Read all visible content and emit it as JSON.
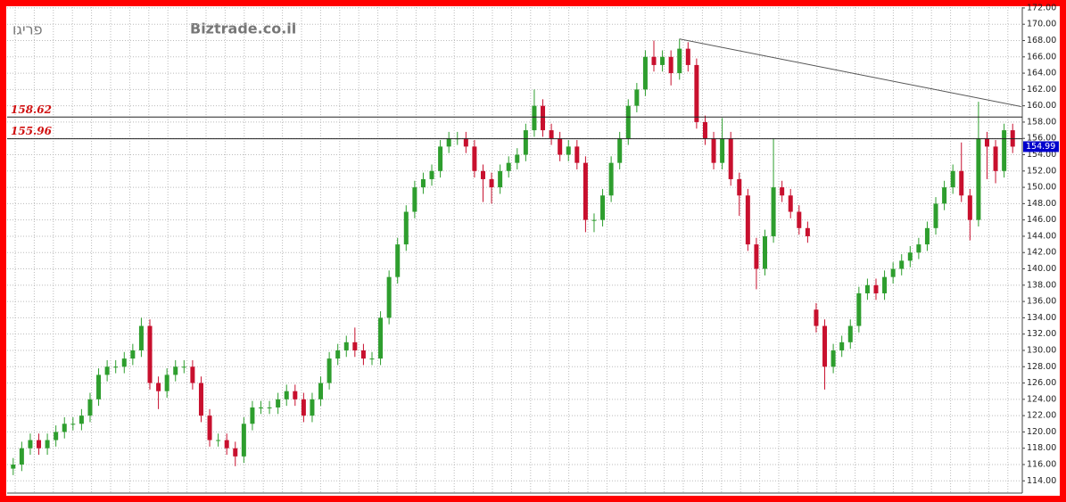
{
  "chart_data": {
    "type": "candlestick",
    "title": "פריגו",
    "watermark": "Biztrade.co.il",
    "up_color": "#2e9e2e",
    "down_color": "#c8102e",
    "ylim": [
      112.5,
      172.1
    ],
    "yticks": [
      {
        "value": 114,
        "label": "114.00"
      },
      {
        "value": 116,
        "label": "116.00"
      },
      {
        "value": 118,
        "label": "118.00"
      },
      {
        "value": 120,
        "label": "120.00"
      },
      {
        "value": 122,
        "label": "122.00"
      },
      {
        "value": 124,
        "label": "124.00"
      },
      {
        "value": 126,
        "label": "126.00"
      },
      {
        "value": 128,
        "label": "128.00"
      },
      {
        "value": 130,
        "label": "130.00"
      },
      {
        "value": 132,
        "label": "132.00"
      },
      {
        "value": 134,
        "label": "134.00"
      },
      {
        "value": 136,
        "label": "136.00"
      },
      {
        "value": 138,
        "label": "138.00"
      },
      {
        "value": 140,
        "label": "140.00"
      },
      {
        "value": 142,
        "label": "142.00"
      },
      {
        "value": 144,
        "label": "144.00"
      },
      {
        "value": 146,
        "label": "146.00"
      },
      {
        "value": 148,
        "label": "148.00"
      },
      {
        "value": 150,
        "label": "150.00"
      },
      {
        "value": 152,
        "label": "152.00"
      },
      {
        "value": 154,
        "label": "154.00"
      },
      {
        "value": 156,
        "label": "156.00"
      },
      {
        "value": 158,
        "label": "158.00"
      },
      {
        "value": 160,
        "label": "160.00"
      },
      {
        "value": 162,
        "label": "162.00"
      },
      {
        "value": 164,
        "label": "164.00"
      },
      {
        "value": 166,
        "label": "166.00"
      },
      {
        "value": 168,
        "label": "168.00"
      },
      {
        "value": 170,
        "label": "170.00"
      },
      {
        "value": 172,
        "label": "172.00"
      }
    ],
    "grid": true,
    "open": [
      115.5,
      116,
      118,
      119,
      118,
      119,
      120,
      121,
      121,
      122,
      124,
      127,
      128,
      128,
      129,
      130,
      133,
      126,
      125,
      127,
      128,
      128,
      126,
      122,
      119,
      119,
      118,
      117,
      121,
      123,
      123,
      123,
      124,
      125,
      124,
      122,
      124,
      126,
      129,
      130,
      131,
      130,
      129,
      129,
      134,
      139,
      143,
      147,
      150,
      151,
      152,
      155,
      156,
      156,
      155,
      152,
      151,
      150,
      152,
      153,
      154,
      157,
      160,
      157,
      156,
      154,
      155,
      153,
      146,
      146,
      149,
      153,
      156,
      160,
      162,
      166,
      165,
      166,
      164,
      167,
      165,
      158,
      156,
      153,
      156,
      151,
      149,
      143,
      140,
      144,
      150,
      149,
      147,
      145,
      135,
      133,
      128,
      130,
      131,
      133,
      137,
      138,
      137,
      139,
      140,
      141,
      142,
      143,
      145,
      148,
      150,
      152,
      149,
      146,
      156,
      155,
      152,
      157
    ],
    "high": [
      116.8,
      118.8,
      119.8,
      119.8,
      119.8,
      120.8,
      121.8,
      121.8,
      122.8,
      124.8,
      127.8,
      128.8,
      128.8,
      129.8,
      130.8,
      134,
      133.8,
      126.8,
      127.8,
      128.8,
      128.8,
      128.8,
      126.8,
      122.8,
      119.8,
      119.8,
      118.8,
      121.8,
      123.8,
      123.8,
      123.8,
      124.8,
      125.8,
      125.8,
      124.8,
      124.8,
      126.8,
      129.8,
      130.8,
      131.8,
      132.8,
      130.8,
      129.8,
      134.8,
      139.8,
      143.8,
      147.8,
      150.8,
      151.8,
      152.8,
      155.8,
      156.8,
      156.8,
      156.8,
      155.8,
      152.8,
      151.8,
      152.8,
      153.8,
      154.8,
      157.8,
      162,
      160.8,
      157.8,
      156.8,
      155.8,
      155.8,
      153.8,
      146.8,
      149.8,
      153.8,
      156.8,
      160.8,
      162.8,
      166.8,
      168,
      166.8,
      166.8,
      168.2,
      167.8,
      165.8,
      158.8,
      156.8,
      158.5,
      156.8,
      151.8,
      149.8,
      143.8,
      144.8,
      156,
      150.8,
      149.8,
      147.8,
      145.8,
      135.8,
      133.8,
      130.8,
      131.8,
      133.8,
      137.8,
      138.8,
      138.8,
      139.8,
      140.8,
      141.8,
      142.8,
      143.8,
      145.8,
      148.8,
      150.8,
      152.8,
      155.5,
      149.8,
      160.5,
      156.8,
      155.8,
      157.8,
      157.8
    ],
    "low": [
      114.7,
      115.2,
      117.2,
      117.2,
      117.2,
      118.2,
      119.2,
      120.2,
      120.2,
      121.2,
      123.2,
      126.2,
      127.2,
      127.2,
      128.2,
      129.2,
      125.2,
      122.8,
      124.2,
      126.2,
      127.2,
      125.2,
      121.2,
      118.2,
      118.2,
      117.2,
      115.8,
      116.2,
      120.2,
      122.2,
      122.2,
      122.2,
      123.2,
      123.2,
      121.2,
      121.2,
      123.2,
      125.2,
      128.2,
      129.2,
      129.2,
      128.2,
      128.2,
      128.2,
      133.2,
      138.2,
      142.2,
      146.2,
      149.2,
      150.2,
      151.2,
      154.2,
      155.2,
      154.2,
      151.2,
      148.2,
      148,
      149.2,
      151.2,
      152.2,
      153.2,
      156.2,
      156.2,
      155.2,
      153.2,
      153.2,
      152.2,
      144.5,
      144.5,
      145.2,
      148.2,
      152.2,
      155.2,
      159.2,
      161.2,
      164.2,
      164.2,
      162.5,
      163.2,
      164.2,
      157.2,
      155.2,
      152.2,
      152.2,
      150.2,
      146.5,
      142.2,
      137.5,
      139.2,
      143.2,
      148.2,
      146.2,
      144.2,
      143.2,
      132.2,
      125.2,
      127.2,
      129.2,
      130.2,
      132.2,
      136.2,
      136.2,
      136.2,
      138.2,
      139.2,
      140.2,
      141.2,
      142.2,
      144.2,
      147.2,
      149.2,
      148.2,
      143.5,
      145.2,
      151,
      150.5,
      151.2,
      154.2
    ],
    "close": [
      116,
      118,
      119,
      118,
      119,
      120,
      121,
      121,
      122,
      124,
      127,
      128,
      128,
      129,
      130,
      133,
      126,
      125,
      127,
      128,
      128,
      126,
      122,
      119,
      119,
      118,
      117,
      121,
      123,
      123,
      123,
      124,
      125,
      124,
      122,
      124,
      126,
      129,
      130,
      131,
      130,
      129,
      129,
      134,
      139,
      143,
      147,
      150,
      151,
      152,
      155,
      156,
      156,
      155,
      152,
      151,
      150,
      152,
      153,
      154,
      157,
      160,
      157,
      156,
      154,
      155,
      153,
      146,
      146,
      149,
      153,
      156,
      160,
      162,
      166,
      165,
      166,
      164,
      167,
      165,
      158,
      156,
      153,
      156,
      151,
      149,
      143,
      140,
      144,
      150,
      149,
      147,
      145,
      144,
      133,
      128,
      130,
      131,
      133,
      137,
      138,
      137,
      139,
      140,
      141,
      142,
      143,
      145,
      148,
      150,
      152,
      149,
      146,
      156,
      155,
      152,
      157,
      154.99
    ],
    "levels": [
      158.62,
      155.96
    ],
    "level_color": "#d01010",
    "last_price": 154.99,
    "trendline": {
      "x": [
        78,
        118
      ],
      "y": [
        168.2,
        159.9
      ]
    }
  }
}
